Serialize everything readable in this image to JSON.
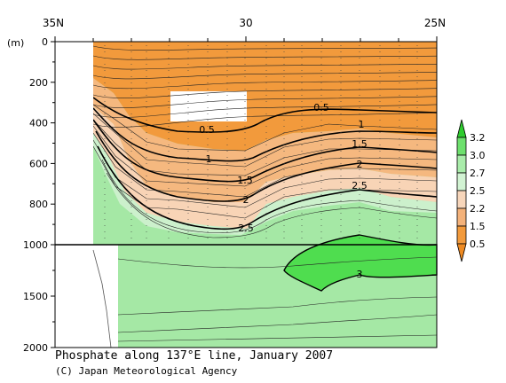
{
  "chart_data": {
    "type": "contour",
    "title": "Phosphate along 137°E line, January 2007",
    "credit": "(C) Japan Meteorological Agency",
    "x_axis": {
      "ticks": [
        "35N",
        "30",
        "25N"
      ],
      "range": [
        35,
        25
      ]
    },
    "y_axis": {
      "unit": "(m)",
      "upper_ticks": [
        "0",
        "200",
        "400",
        "600",
        "800",
        "1000"
      ],
      "lower_ticks": [
        "1500",
        "2000"
      ],
      "upper_range": [
        0,
        1000
      ],
      "lower_range": [
        1000,
        2000
      ]
    },
    "colorbar": {
      "levels": [
        "3.2",
        "3.0",
        "2.7",
        "2.5",
        "2.2",
        "1.5",
        "0.5"
      ],
      "colors": [
        "#2ecc2e",
        "#6de06d",
        "#a9ecaa",
        "#d2f3d3",
        "#f7d6bb",
        "#f4b27a",
        "#f29a3c",
        "#ee8a22"
      ]
    },
    "contour_labels": [
      "0.5",
      "0.5",
      "1",
      "1",
      "1.5",
      "1.5",
      "2",
      "2",
      "2.5",
      "2.5",
      "3"
    ],
    "colors": {
      "orange": "#f29a3c",
      "light_orange": "#f5c295",
      "peach": "#f8dcc4",
      "pale_green": "#ccf0cc",
      "green": "#9be89b",
      "bright_green": "#55e055"
    }
  }
}
